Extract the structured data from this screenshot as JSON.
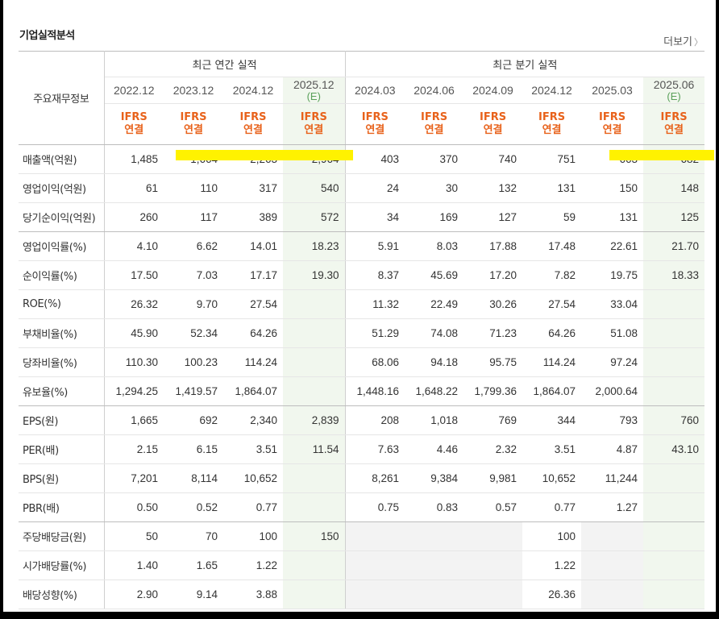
{
  "title": "기업실적분석",
  "more_label": "더보기",
  "header": {
    "row_label": "주요재무정보",
    "annual_group": "최근 연간 실적",
    "quarter_group": "최근 분기 실적",
    "annual_periods": [
      "2022.12",
      "2023.12",
      "2024.12",
      "2025.12"
    ],
    "quarter_periods": [
      "2024.03",
      "2024.06",
      "2024.09",
      "2024.12",
      "2025.03",
      "2025.06"
    ],
    "estimate_tag": "(E)",
    "ifrs_line1": "IFRS",
    "ifrs_line2": "연결"
  },
  "rows": [
    {
      "label": "매출액(억원)",
      "cells": [
        "1,485",
        "1,664",
        "2,263",
        "2,964",
        "403",
        "370",
        "740",
        "751",
        "663",
        "682"
      ]
    },
    {
      "label": "영업이익(억원)",
      "cells": [
        "61",
        "110",
        "317",
        "540",
        "24",
        "30",
        "132",
        "131",
        "150",
        "148"
      ]
    },
    {
      "label": "당기순이익(억원)",
      "cells": [
        "260",
        "117",
        "389",
        "572",
        "34",
        "169",
        "127",
        "59",
        "131",
        "125"
      ]
    },
    {
      "label": "영업이익률(%)",
      "cells": [
        "4.10",
        "6.62",
        "14.01",
        "18.23",
        "5.91",
        "8.03",
        "17.88",
        "17.48",
        "22.61",
        "21.70"
      ]
    },
    {
      "label": "순이익률(%)",
      "cells": [
        "17.50",
        "7.03",
        "17.17",
        "19.30",
        "8.37",
        "45.69",
        "17.20",
        "7.82",
        "19.75",
        "18.33"
      ]
    },
    {
      "label": "ROE(%)",
      "cells": [
        "26.32",
        "9.70",
        "27.54",
        "",
        "11.32",
        "22.49",
        "30.26",
        "27.54",
        "33.04",
        ""
      ]
    },
    {
      "label": "부채비율(%)",
      "cells": [
        "45.90",
        "52.34",
        "64.26",
        "",
        "51.29",
        "74.08",
        "71.23",
        "64.26",
        "51.08",
        ""
      ]
    },
    {
      "label": "당좌비율(%)",
      "cells": [
        "110.30",
        "100.23",
        "114.24",
        "",
        "68.06",
        "94.18",
        "95.75",
        "114.24",
        "97.24",
        ""
      ]
    },
    {
      "label": "유보율(%)",
      "cells": [
        "1,294.25",
        "1,419.57",
        "1,864.07",
        "",
        "1,448.16",
        "1,648.22",
        "1,799.36",
        "1,864.07",
        "2,000.64",
        ""
      ]
    },
    {
      "label": "EPS(원)",
      "cells": [
        "1,665",
        "692",
        "2,340",
        "2,839",
        "208",
        "1,018",
        "769",
        "344",
        "793",
        "760"
      ]
    },
    {
      "label": "PER(배)",
      "cells": [
        "2.15",
        "6.15",
        "3.51",
        "11.54",
        "7.63",
        "4.46",
        "2.32",
        "3.51",
        "4.87",
        "43.10"
      ]
    },
    {
      "label": "BPS(원)",
      "cells": [
        "7,201",
        "8,114",
        "10,652",
        "",
        "8,261",
        "9,384",
        "9,981",
        "10,652",
        "11,244",
        ""
      ]
    },
    {
      "label": "PBR(배)",
      "cells": [
        "0.50",
        "0.52",
        "0.77",
        "",
        "0.75",
        "0.83",
        "0.57",
        "0.77",
        "1.27",
        ""
      ]
    },
    {
      "label": "주당배당금(원)",
      "cells": [
        "50",
        "70",
        "100",
        "150",
        "",
        "",
        "",
        "100",
        "",
        ""
      ]
    },
    {
      "label": "시가배당률(%)",
      "cells": [
        "1.40",
        "1.65",
        "1.22",
        "",
        "",
        "",
        "",
        "1.22",
        "",
        ""
      ]
    },
    {
      "label": "배당성향(%)",
      "cells": [
        "2.90",
        "9.14",
        "3.88",
        "",
        "",
        "",
        "",
        "26.36",
        "",
        ""
      ]
    }
  ],
  "colors": {
    "ifrs_orange": "#e8621b",
    "estimate_green": "#5aa05a",
    "estimate_bg": "#f1f7ee",
    "highlight_yellow": "#fff200"
  }
}
